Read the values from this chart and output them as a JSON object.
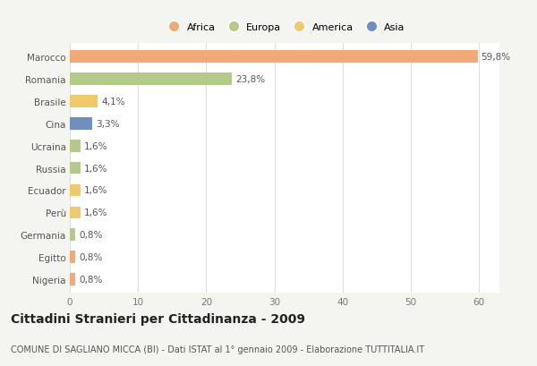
{
  "categories": [
    "Marocco",
    "Romania",
    "Brasile",
    "Cina",
    "Ucraina",
    "Russia",
    "Ecuador",
    "Perù",
    "Germania",
    "Egitto",
    "Nigeria"
  ],
  "values": [
    59.8,
    23.8,
    4.1,
    3.3,
    1.6,
    1.6,
    1.6,
    1.6,
    0.8,
    0.8,
    0.8
  ],
  "colors": [
    "#f0aa78",
    "#b5c98a",
    "#f0c86e",
    "#6e8fc0",
    "#b5c98a",
    "#b5c98a",
    "#f0c86e",
    "#f0c86e",
    "#b5c98a",
    "#f0aa78",
    "#f0aa78"
  ],
  "labels": [
    "59,8%",
    "23,8%",
    "4,1%",
    "3,3%",
    "1,6%",
    "1,6%",
    "1,6%",
    "1,6%",
    "0,8%",
    "0,8%",
    "0,8%"
  ],
  "continent_labels": [
    "Africa",
    "Europa",
    "America",
    "Asia"
  ],
  "continent_colors": [
    "#f0aa78",
    "#b5c98a",
    "#f0c86e",
    "#6e8fc0"
  ],
  "xlim": [
    0,
    63
  ],
  "xticks": [
    0,
    10,
    20,
    30,
    40,
    50,
    60
  ],
  "title": "Cittadini Stranieri per Cittadinanza - 2009",
  "subtitle": "COMUNE DI SAGLIANO MICCA (BI) - Dati ISTAT al 1° gennaio 2009 - Elaborazione TUTTITALIA.IT",
  "bg_color": "#f4f4f0",
  "bar_bg_color": "#ffffff",
  "grid_color": "#dddddd",
  "label_fontsize": 7.5,
  "title_fontsize": 10,
  "subtitle_fontsize": 7
}
